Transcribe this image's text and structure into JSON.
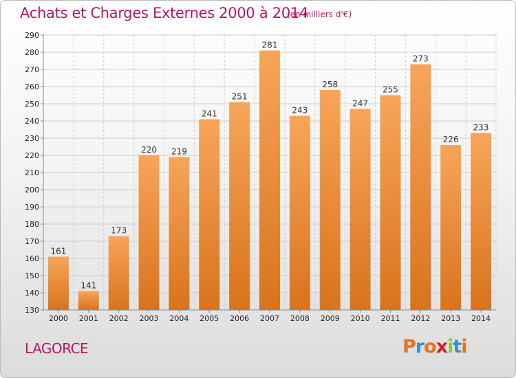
{
  "header": {
    "title": "Achats et Charges Externes 2000 à 2014",
    "subtitle": "(en milliers d'€)"
  },
  "place": "LAGORCE",
  "logo": {
    "letters": [
      "P",
      "r",
      "o",
      "x",
      "i",
      "t",
      "i"
    ],
    "colors": [
      "#e8731b",
      "#3a8fd0",
      "#e8731b",
      "#d0202c",
      "#8cc63e",
      "#3a8fd0",
      "#e8731b"
    ]
  },
  "colors": {
    "title": "#b5175f",
    "bar_light": "#f7a55a",
    "bar_dark": "#d9731c",
    "grid": "#cccccc"
  },
  "chart_data": {
    "type": "bar",
    "title": "Achats et Charges Externes 2000 à 2014",
    "subtitle": "(en milliers d'€)",
    "categories": [
      "2000",
      "2001",
      "2002",
      "2003",
      "2004",
      "2005",
      "2006",
      "2007",
      "2008",
      "2009",
      "2010",
      "2011",
      "2012",
      "2013",
      "2014"
    ],
    "values": [
      161,
      141,
      173,
      220,
      219,
      241,
      251,
      281,
      243,
      258,
      247,
      255,
      273,
      226,
      233
    ],
    "ylim": [
      130,
      290
    ],
    "yticks": [
      130,
      140,
      150,
      160,
      170,
      180,
      190,
      200,
      210,
      220,
      230,
      240,
      250,
      260,
      270,
      280,
      290
    ],
    "grid": true,
    "data_labels": true
  }
}
